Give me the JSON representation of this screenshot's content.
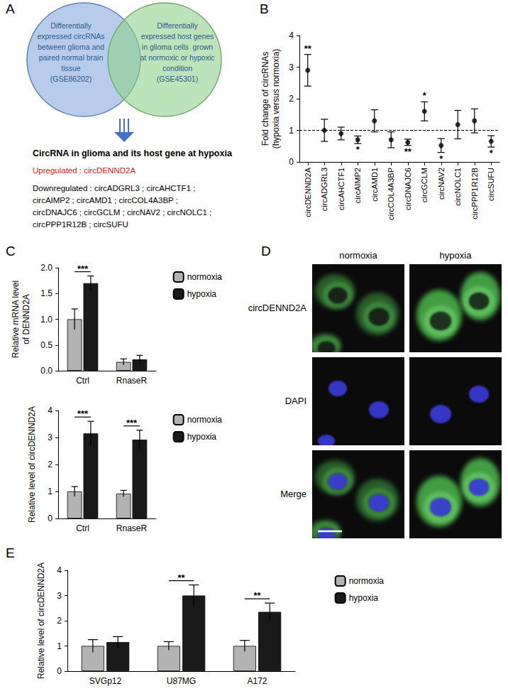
{
  "panel_labels": [
    "A",
    "B",
    "C",
    "D",
    "E"
  ],
  "venn": {
    "left_lines": [
      "Differentially",
      "expressed circRNAs",
      "between glioma and",
      "paired normal brain",
      "tissue",
      "(GSE86202)"
    ],
    "right_lines": [
      "Differentially",
      "expressed host genes",
      "in glioma cells  grown",
      "at normoxic or hypoxic",
      "condition",
      "(GSE45301)"
    ],
    "heading": "CircRNA in glioma and its host gene at hypoxia",
    "up_lines": [
      "Upregulated : circDENND2A"
    ],
    "down_lines": [
      "Downregulated : circADGRL3 ; circAHCTF1 ;",
      "circAIMP2 ; circAMD1 ; circCOL4A3BP ;",
      "circDNAJC6 ; circGCLM ; circNAV2 ; circNOLC1 ;",
      "circPPP1R12B ; circSUFU"
    ]
  },
  "chart_data": [
    {
      "type": "scatter",
      "ylabel": "Fold change of circRNAs\n(hypoxia versus normoxia)",
      "categories": [
        "circDENND2A",
        "circADGRL3",
        "circAHCTF1",
        "circAIMP2",
        "circAMD1",
        "circCOL4A3BP",
        "circDNAJC6",
        "circGCLM",
        "circNAV2",
        "circNOLC1",
        "circPPP1R12B",
        "circSUFU"
      ],
      "values": [
        2.9,
        1.0,
        0.9,
        0.7,
        1.3,
        0.7,
        0.62,
        1.6,
        0.52,
        1.18,
        1.3,
        0.65
      ],
      "errors": [
        0.5,
        0.35,
        0.2,
        0.12,
        0.35,
        0.25,
        0.1,
        0.3,
        0.22,
        0.45,
        0.38,
        0.18
      ],
      "significance": [
        "**",
        null,
        null,
        "*",
        null,
        null,
        "**",
        "*",
        "*",
        null,
        null,
        "*"
      ],
      "reference_line": 1,
      "color": "#000000",
      "marker": "circle",
      "ylim": [
        0,
        4
      ],
      "yticks": [
        0,
        1,
        2,
        3,
        4
      ],
      "grid": false
    },
    {
      "type": "bar",
      "ylabel": "Relative mRNA level\nof DENND2A",
      "categories": [
        "Ctrl",
        "RnaseR"
      ],
      "series": [
        {
          "name": "normoxia",
          "color": "#b3b3b3",
          "values": [
            1.0,
            0.17
          ],
          "errors": [
            0.2,
            0.06
          ]
        },
        {
          "name": "hypoxia",
          "color": "#1a1a1a",
          "values": [
            1.7,
            0.22
          ],
          "errors": [
            0.14,
            0.08
          ]
        }
      ],
      "significance": [
        "***",
        null
      ],
      "ylim": [
        0,
        2
      ],
      "yticks": [
        {
          "value": 0,
          "label": "0.0"
        },
        {
          "value": 0.5,
          "label": "0.5"
        },
        {
          "value": 1,
          "label": "1.0"
        },
        {
          "value": 1.5,
          "label": "1.5"
        },
        {
          "value": 2,
          "label": "2.0"
        }
      ],
      "legend": "right",
      "grid": false
    },
    {
      "type": "bar",
      "ylabel": "Relative level of circDENND2A",
      "categories": [
        "Ctrl",
        "RnaseR"
      ],
      "series": [
        {
          "name": "normoxia",
          "color": "#b3b3b3",
          "values": [
            1.0,
            0.92
          ],
          "errors": [
            0.18,
            0.12
          ]
        },
        {
          "name": "hypoxia",
          "color": "#1a1a1a",
          "values": [
            3.15,
            2.92
          ],
          "errors": [
            0.45,
            0.35
          ]
        }
      ],
      "significance": [
        "***",
        "***"
      ],
      "ylim": [
        0,
        4
      ],
      "yticks": [
        0,
        1,
        2,
        3,
        4
      ],
      "legend": "right",
      "grid": false
    },
    {
      "type": "bar",
      "ylabel": "Relative level of circDENND2A",
      "categories": [
        "SVGp12",
        "U87MG",
        "A172"
      ],
      "series": [
        {
          "name": "normoxia",
          "color": "#b3b3b3",
          "values": [
            1.0,
            1.0,
            1.0
          ],
          "errors": [
            0.25,
            0.17,
            0.22
          ]
        },
        {
          "name": "hypoxia",
          "color": "#1a1a1a",
          "values": [
            1.15,
            3.0,
            2.35
          ],
          "errors": [
            0.22,
            0.42,
            0.35
          ]
        }
      ],
      "significance": [
        null,
        "**",
        "**"
      ],
      "ylim": [
        0,
        4
      ],
      "yticks": [
        0,
        1,
        2,
        3,
        4
      ],
      "legend": "right",
      "grid": false
    }
  ],
  "microscopy": {
    "columns": [
      "normoxia",
      "hypoxia"
    ],
    "rows": [
      "circDENND2A",
      "DAPI",
      "Merge"
    ]
  }
}
